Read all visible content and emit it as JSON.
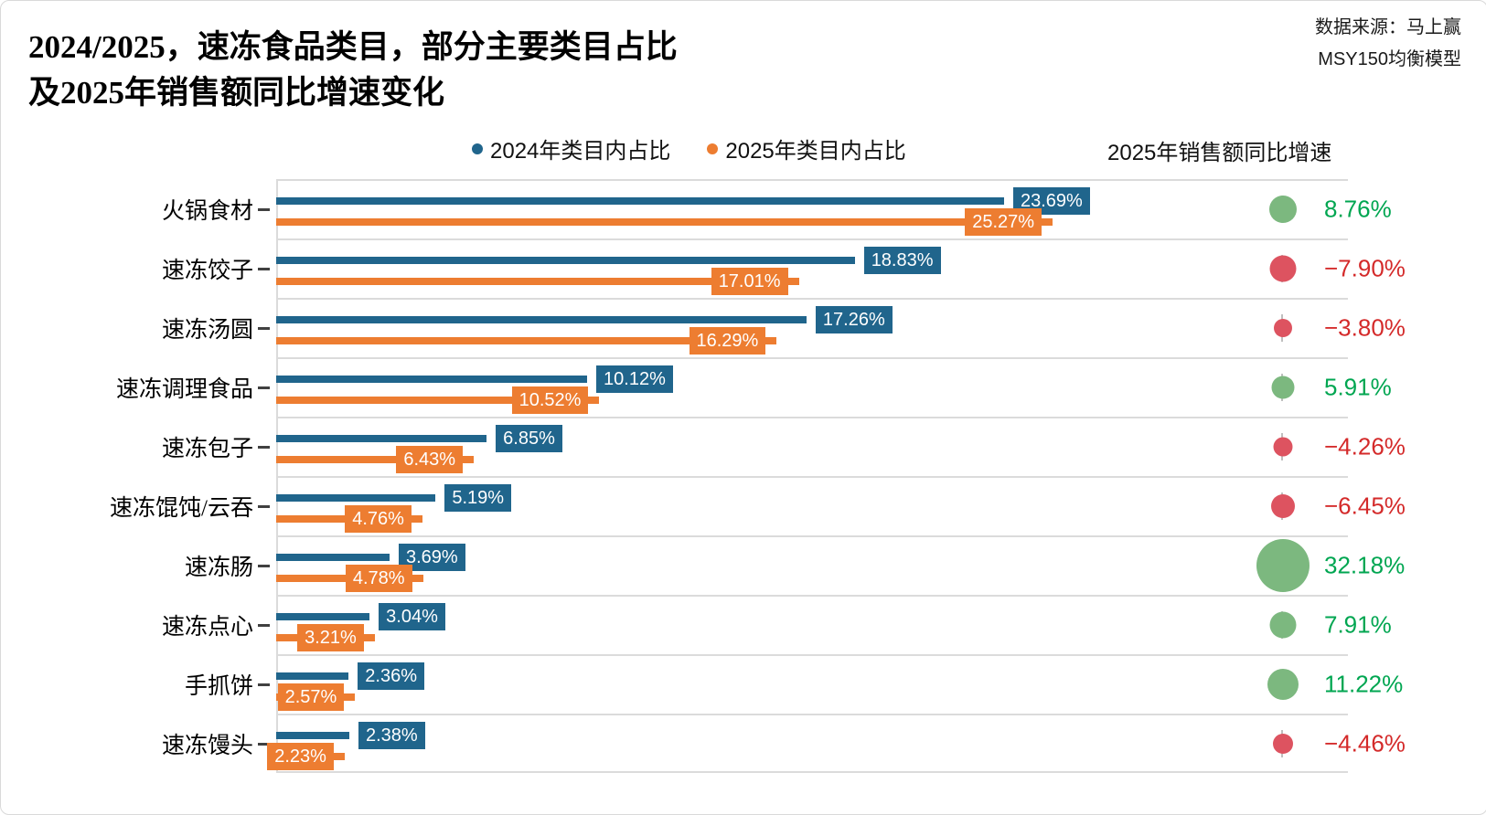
{
  "title": {
    "line1": "2024/2025，速冻食品类目，部分主要类目占比",
    "line2": "及2025年销售额同比增速变化"
  },
  "source": {
    "line1": "数据来源：马上赢",
    "line2": "MSY150均衡模型"
  },
  "growth_header": "2025年销售额同比增速",
  "colors": {
    "bar_2024": "#20658C",
    "bar_2025": "#ED7D31",
    "separator": "#DBDBDB",
    "growth_positive_bubble": "#7CB87F",
    "growth_negative_bubble": "#DD5360",
    "growth_positive_text": "#00A651",
    "growth_negative_text": "#D42A2A"
  },
  "chart_data": {
    "type": "bar",
    "orientation": "horizontal",
    "title": "2024/2025，速冻食品类目，部分主要类目占比 及2025年销售额同比增速变化",
    "legend_position": "top",
    "grid": "row-separators",
    "xlim": [
      0,
      31
    ],
    "categories": [
      "火锅食材",
      "速冻饺子",
      "速冻汤圆",
      "速冻调理食品",
      "速冻包子",
      "速冻馄饨/云吞",
      "速冻肠",
      "速冻点心",
      "手抓饼",
      "速冻馒头"
    ],
    "series": [
      {
        "name": "2024年类目内占比",
        "color": "#20658C",
        "values": [
          23.69,
          18.83,
          17.26,
          10.12,
          6.85,
          5.19,
          3.69,
          3.04,
          2.36,
          2.38
        ],
        "labels": [
          "23.69%",
          "18.83%",
          "17.26%",
          "10.12%",
          "6.85%",
          "5.19%",
          "3.69%",
          "3.04%",
          "2.36%",
          "2.38%"
        ]
      },
      {
        "name": "2025年类目内占比",
        "color": "#ED7D31",
        "values": [
          25.27,
          17.01,
          16.29,
          10.52,
          6.43,
          4.76,
          4.78,
          3.21,
          2.57,
          2.23
        ],
        "labels": [
          "25.27%",
          "17.01%",
          "16.29%",
          "10.52%",
          "6.43%",
          "4.76%",
          "4.78%",
          "3.21%",
          "2.57%",
          "2.23%"
        ]
      }
    ],
    "growth_series": {
      "name": "2025年销售额同比增速",
      "type": "bubble",
      "values": [
        8.76,
        -7.9,
        -3.8,
        5.91,
        -4.26,
        -6.45,
        32.18,
        7.91,
        11.22,
        -4.46
      ],
      "labels": [
        "8.76%",
        "−7.90%",
        "−3.80%",
        "5.91%",
        "−4.26%",
        "−6.45%",
        "32.18%",
        "7.91%",
        "11.22%",
        "−4.46%"
      ]
    }
  }
}
